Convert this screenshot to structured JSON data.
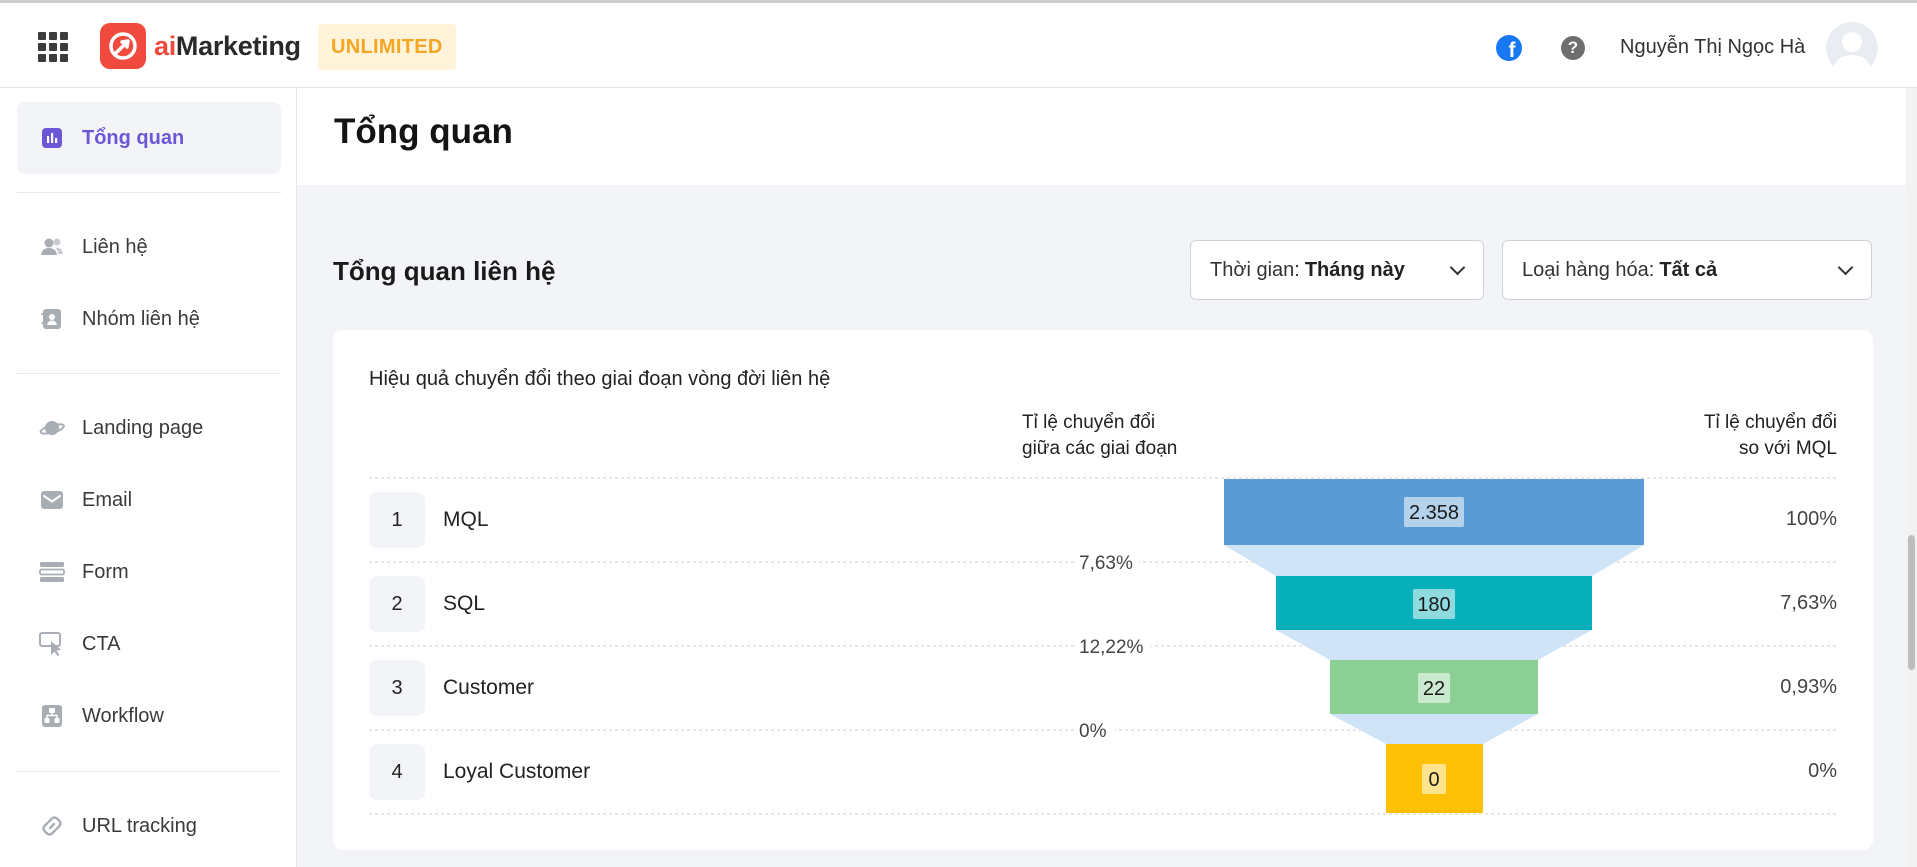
{
  "header": {
    "logo_ai": "ai",
    "logo_rest": "Marketing",
    "plan_badge": "UNLIMITED",
    "user_name": "Nguyễn Thị Ngọc Hà",
    "facebook_glyph": "f",
    "help_glyph": "?",
    "icons": [
      "apps-grid-icon",
      "facebook-icon",
      "help-icon"
    ]
  },
  "sidebar": {
    "items": [
      {
        "label": "Tổng quan",
        "icon": "chart-bars-icon",
        "active": true
      },
      {
        "label": "Liên hệ",
        "icon": "contacts-icon"
      },
      {
        "label": "Nhóm liên hệ",
        "icon": "contact-book-icon"
      },
      {
        "label": "Landing page",
        "icon": "planet-icon"
      },
      {
        "label": "Email",
        "icon": "mail-icon"
      },
      {
        "label": "Form",
        "icon": "form-icon"
      },
      {
        "label": "CTA",
        "icon": "cursor-click-icon"
      },
      {
        "label": "Workflow",
        "icon": "workflow-icon"
      },
      {
        "label": "URL tracking",
        "icon": "link-icon"
      }
    ],
    "active_color": "#6c57d6"
  },
  "page": {
    "title": "Tổng quan",
    "section_title": "Tổng quan liên hệ",
    "filters": {
      "time_label": "Thời gian:",
      "time_value": "Tháng này",
      "product_label": "Loại hàng hóa:",
      "product_value": "Tất cả"
    }
  },
  "funnel_card": {
    "title": "Hiệu quả chuyển đổi theo giai đoạn vòng đời liên hệ",
    "col_between_line1": "Tỉ lệ chuyển đổi",
    "col_between_line2": "giữa các giai đoạn",
    "col_mql_line1": "Tỉ lệ chuyển đổi",
    "col_mql_line2": "so với MQL",
    "stages": [
      {
        "num": "1",
        "name": "MQL",
        "count": "2.358",
        "mql_rate": "100%",
        "color": "#5b9bd5"
      },
      {
        "num": "2",
        "name": "SQL",
        "count": "180",
        "mql_rate": "7,63%",
        "color": "#08b0bb"
      },
      {
        "num": "3",
        "name": "Customer",
        "count": "22",
        "mql_rate": "0,93%",
        "color": "#8ccf95"
      },
      {
        "num": "4",
        "name": "Loyal Customer",
        "count": "0",
        "mql_rate": "0%",
        "color": "#ffc107"
      }
    ],
    "between_rates": [
      "7,63%",
      "12,22%",
      "0%"
    ],
    "connector_color": "#cfe4f6"
  }
}
